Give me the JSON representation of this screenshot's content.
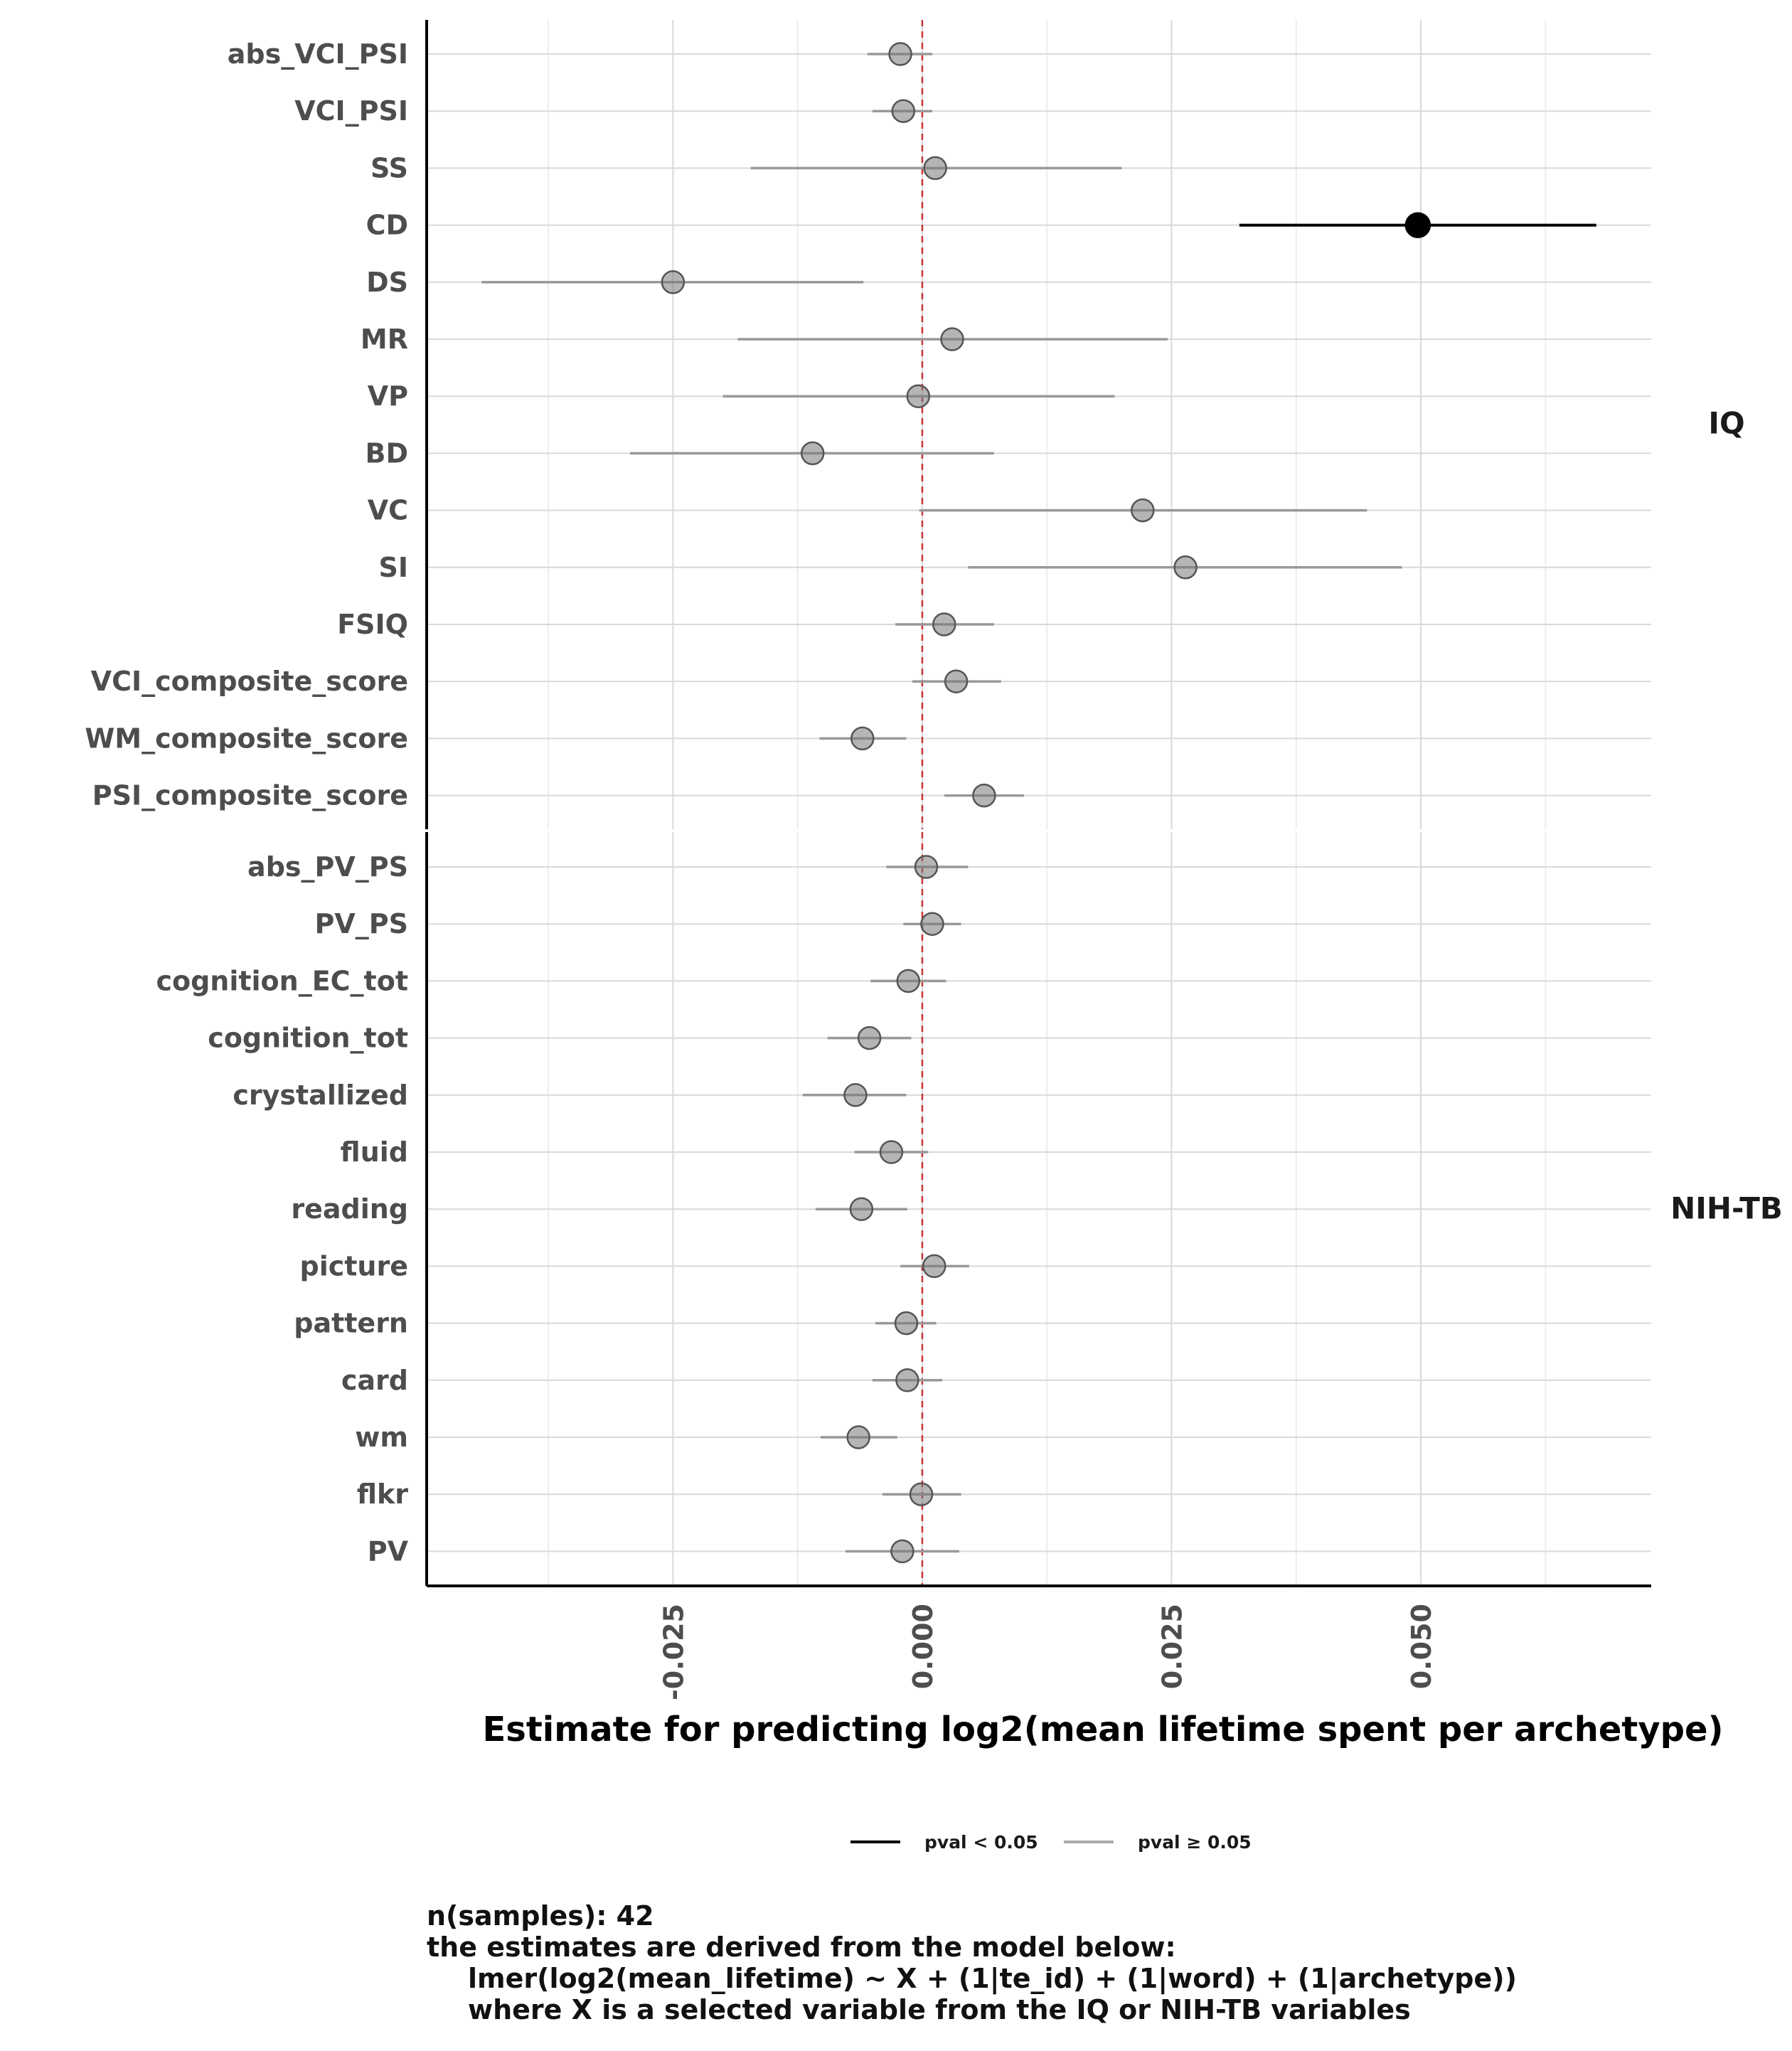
{
  "chart_data": {
    "type": "scatter",
    "subtype": "forest-plot",
    "xlabel": "Estimate for predicting log2(mean lifetime spent per archetype)",
    "xticks": [
      -0.025,
      0.0,
      0.025,
      0.05
    ],
    "xtick_labels": [
      "-0.025",
      "0.000",
      "0.025",
      "0.050"
    ],
    "xlim": [
      -0.0497,
      0.0731
    ],
    "reference_line": {
      "x": 0,
      "color": "#cc3333",
      "style": "dashed"
    },
    "grid": true,
    "legend": {
      "position": "bottom",
      "items": [
        {
          "label": "pval < 0.05",
          "color": "#000000"
        },
        {
          "label": "pval ≥ 0.05",
          "color": "#aaaaaa"
        }
      ]
    },
    "panels": [
      {
        "name": "IQ",
        "rows": [
          {
            "label": "abs_VCI_PSI",
            "estimate": -0.0022,
            "lo": -0.0055,
            "hi": 0.001,
            "significant": false
          },
          {
            "label": "VCI_PSI",
            "estimate": -0.0019,
            "lo": -0.005,
            "hi": 0.001,
            "significant": false
          },
          {
            "label": "SS",
            "estimate": 0.0013,
            "lo": -0.0172,
            "hi": 0.02,
            "significant": false
          },
          {
            "label": "CD",
            "estimate": 0.0497,
            "lo": 0.0318,
            "hi": 0.0676,
            "significant": true
          },
          {
            "label": "DS",
            "estimate": -0.025,
            "lo": -0.0442,
            "hi": -0.0059,
            "significant": false
          },
          {
            "label": "MR",
            "estimate": 0.003,
            "lo": -0.0185,
            "hi": 0.0246,
            "significant": false
          },
          {
            "label": "VP",
            "estimate": -0.0004,
            "lo": -0.02,
            "hi": 0.0193,
            "significant": false
          },
          {
            "label": "BD",
            "estimate": -0.011,
            "lo": -0.0293,
            "hi": 0.0072,
            "significant": false
          },
          {
            "label": "VC",
            "estimate": 0.0221,
            "lo": -0.0003,
            "hi": 0.0446,
            "significant": false
          },
          {
            "label": "SI",
            "estimate": 0.0264,
            "lo": 0.0046,
            "hi": 0.0481,
            "significant": false
          },
          {
            "label": "FSIQ",
            "estimate": 0.0022,
            "lo": -0.0027,
            "hi": 0.0072,
            "significant": false
          },
          {
            "label": "VCI_composite_score",
            "estimate": 0.0034,
            "lo": -0.001,
            "hi": 0.0079,
            "significant": false
          },
          {
            "label": "WM_composite_score",
            "estimate": -0.006,
            "lo": -0.0103,
            "hi": -0.0016,
            "significant": false
          },
          {
            "label": "PSI_composite_score",
            "estimate": 0.0062,
            "lo": 0.0022,
            "hi": 0.0102,
            "significant": false
          }
        ]
      },
      {
        "name": "NIH-TB",
        "rows": [
          {
            "label": "abs_PV_PS",
            "estimate": 0.0004,
            "lo": -0.0036,
            "hi": 0.0046,
            "significant": false
          },
          {
            "label": "PV_PS",
            "estimate": 0.001,
            "lo": -0.0019,
            "hi": 0.0039,
            "significant": false
          },
          {
            "label": "cognition_EC_tot",
            "estimate": -0.0014,
            "lo": -0.0052,
            "hi": 0.0024,
            "significant": false
          },
          {
            "label": "cognition_tot",
            "estimate": -0.0053,
            "lo": -0.0095,
            "hi": -0.0011,
            "significant": false
          },
          {
            "label": "crystallized",
            "estimate": -0.0067,
            "lo": -0.012,
            "hi": -0.0016,
            "significant": false
          },
          {
            "label": "fluid",
            "estimate": -0.0031,
            "lo": -0.0068,
            "hi": 0.0006,
            "significant": false
          },
          {
            "label": "reading",
            "estimate": -0.0061,
            "lo": -0.0107,
            "hi": -0.0015,
            "significant": false
          },
          {
            "label": "picture",
            "estimate": 0.0012,
            "lo": -0.0022,
            "hi": 0.0047,
            "significant": false
          },
          {
            "label": "pattern",
            "estimate": -0.0016,
            "lo": -0.0047,
            "hi": 0.0014,
            "significant": false
          },
          {
            "label": "card",
            "estimate": -0.0015,
            "lo": -0.005,
            "hi": 0.002,
            "significant": false
          },
          {
            "label": "wm",
            "estimate": -0.0064,
            "lo": -0.0102,
            "hi": -0.0025,
            "significant": false
          },
          {
            "label": "flkr",
            "estimate": -0.0001,
            "lo": -0.004,
            "hi": 0.0039,
            "significant": false
          },
          {
            "label": "PV",
            "estimate": -0.002,
            "lo": -0.0077,
            "hi": 0.0037,
            "significant": false
          }
        ]
      }
    ]
  },
  "caption": {
    "line1": "n(samples): 42",
    "line2": "the estimates are derived from the model below:",
    "line3": "lmer(log2(mean_lifetime) ~ X + (1|te_id) + (1|word) + (1|archetype))",
    "line4": "where X is a selected variable from the IQ or NIH-TB variables"
  }
}
